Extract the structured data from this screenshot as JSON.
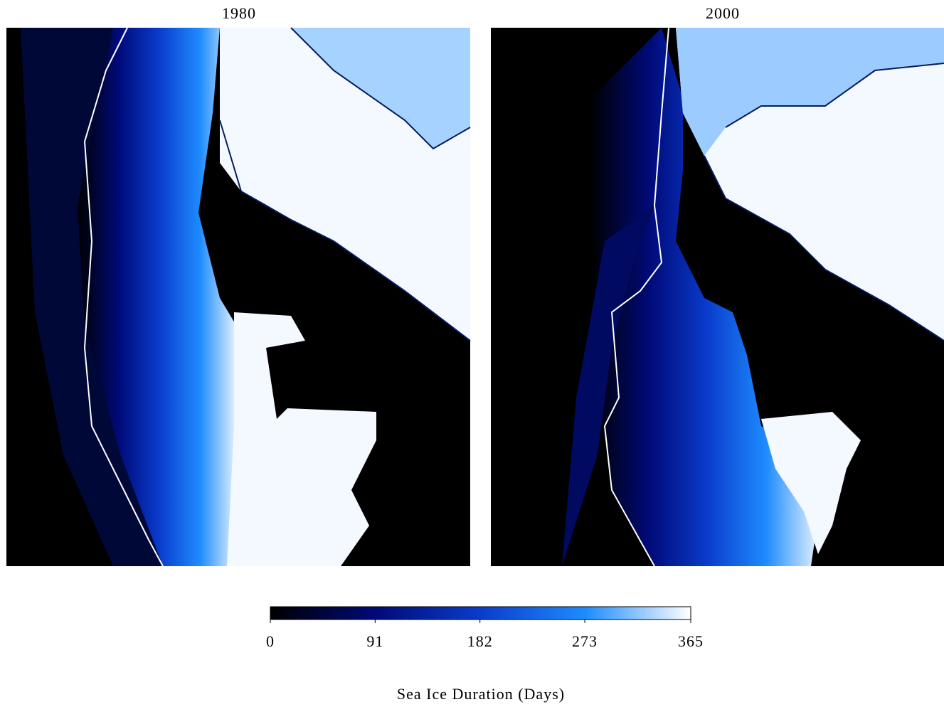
{
  "panels": [
    {
      "title": "1980"
    },
    {
      "title": "2000"
    }
  ],
  "colorbar": {
    "range": [
      0,
      365
    ],
    "ticks": [
      0,
      91,
      182,
      273,
      365
    ],
    "label": "Sea Ice Duration (Days)",
    "colors": [
      "#000000",
      "#000a78",
      "#0a3ccc",
      "#1e8cff",
      "#ffffff"
    ]
  }
}
